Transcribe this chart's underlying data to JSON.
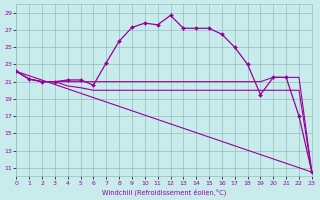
{
  "xlabel": "Windchill (Refroidissement éolien,°C)",
  "bg_color": "#c8ecec",
  "grid_color": "#99bbbb",
  "line_color": "#990099",
  "xlim": [
    0,
    23
  ],
  "ylim": [
    10,
    30
  ],
  "yticks": [
    11,
    13,
    15,
    17,
    19,
    21,
    23,
    25,
    27,
    29
  ],
  "xticks": [
    0,
    1,
    2,
    3,
    4,
    5,
    6,
    7,
    8,
    9,
    10,
    11,
    12,
    13,
    14,
    15,
    16,
    17,
    18,
    19,
    20,
    21,
    22,
    23
  ],
  "curve_main_x": [
    0,
    1,
    2,
    3,
    4,
    5,
    6,
    7,
    8,
    9,
    10,
    11,
    12,
    13,
    14,
    15,
    16,
    17,
    18,
    19,
    20,
    21,
    22,
    23
  ],
  "curve_main_y": [
    22.2,
    21.3,
    21.0,
    21.0,
    21.2,
    21.2,
    20.6,
    23.2,
    25.7,
    27.3,
    27.8,
    27.6,
    28.7,
    27.2,
    27.2,
    27.2,
    26.5,
    25.0,
    23.0,
    19.5,
    21.5,
    21.5,
    17.0,
    10.5
  ],
  "curve2_x": [
    0,
    1,
    2,
    3,
    4,
    5,
    6,
    7,
    8,
    9,
    10,
    11,
    12,
    13,
    14,
    15,
    16,
    17,
    18,
    19,
    20,
    21,
    22,
    23
  ],
  "curve2_y": [
    22.2,
    21.3,
    21.0,
    21.0,
    21.0,
    21.0,
    21.0,
    21.0,
    21.0,
    21.0,
    21.0,
    21.0,
    21.0,
    21.0,
    21.0,
    21.0,
    21.0,
    21.0,
    21.0,
    21.0,
    21.5,
    21.5,
    21.5,
    10.5
  ],
  "curve3_x": [
    0,
    1,
    2,
    3,
    4,
    5,
    6,
    7,
    8,
    9,
    10,
    11,
    12,
    13,
    14,
    15,
    16,
    17,
    18,
    19,
    20,
    21,
    22,
    23
  ],
  "curve3_y": [
    22.2,
    21.3,
    21.0,
    21.0,
    20.5,
    20.3,
    20.0,
    20.0,
    20.0,
    20.0,
    20.0,
    20.0,
    20.0,
    20.0,
    20.0,
    20.0,
    20.0,
    20.0,
    20.0,
    20.0,
    20.0,
    20.0,
    20.0,
    10.5
  ],
  "curve4_x": [
    0,
    23
  ],
  "curve4_y": [
    22.2,
    10.5
  ]
}
